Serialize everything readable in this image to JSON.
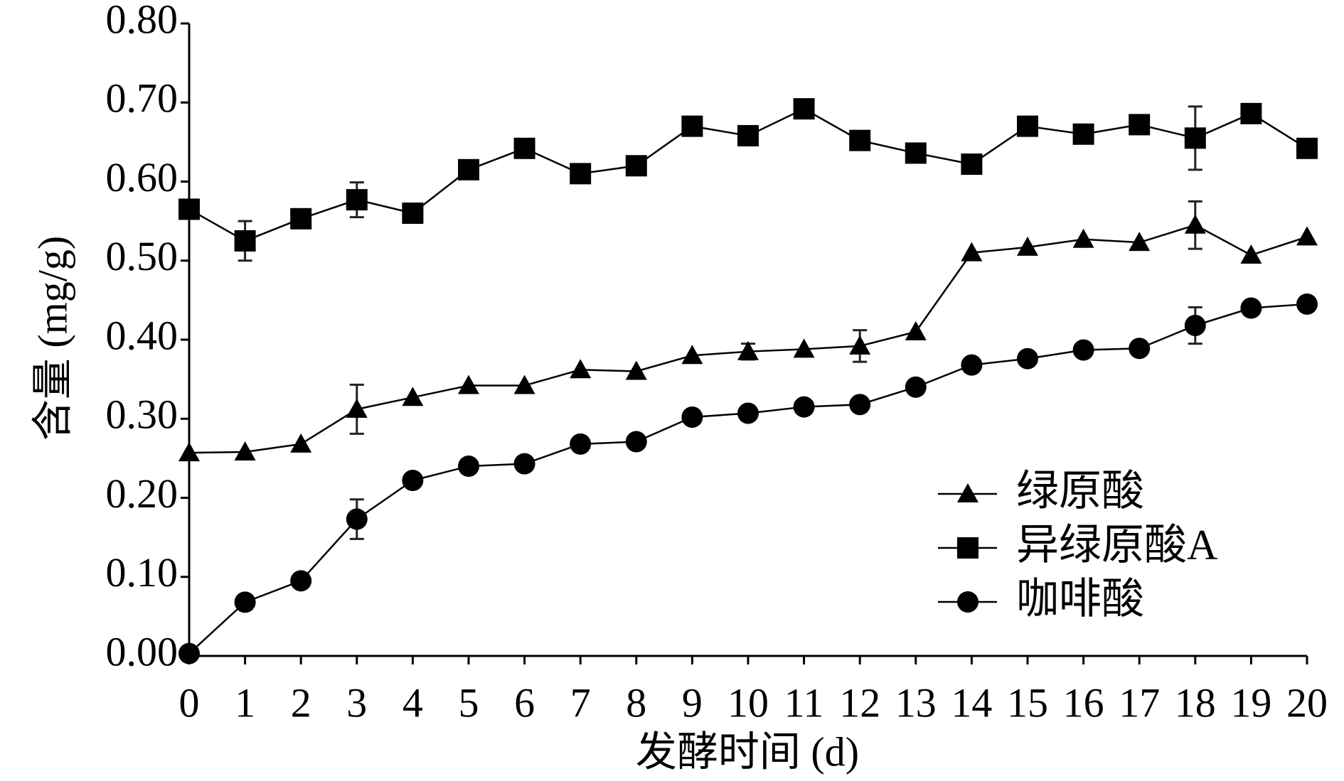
{
  "chart_data": {
    "type": "line",
    "x_label": "发酵时间 (d)",
    "y_label": "含量 (mg/g)",
    "x": [
      0,
      1,
      2,
      3,
      4,
      5,
      6,
      7,
      8,
      9,
      10,
      11,
      12,
      13,
      14,
      15,
      16,
      17,
      18,
      19,
      20
    ],
    "xlim": [
      0,
      20
    ],
    "xticks": [
      0,
      1,
      2,
      3,
      4,
      5,
      6,
      7,
      8,
      9,
      10,
      11,
      12,
      13,
      14,
      15,
      16,
      17,
      18,
      19,
      20
    ],
    "ylim": [
      0,
      0.8
    ],
    "yticks": [
      {
        "value": 0,
        "label": "0.00"
      },
      {
        "value": 0.1,
        "label": "0.10"
      },
      {
        "value": 0.2,
        "label": "0.20"
      },
      {
        "value": 0.3,
        "label": "0.30"
      },
      {
        "value": 0.4,
        "label": "0.40"
      },
      {
        "value": 0.5,
        "label": "0.50"
      },
      {
        "value": 0.6,
        "label": "0.60"
      },
      {
        "value": 0.7,
        "label": "0.70"
      },
      {
        "value": 0.8,
        "label": "0.80"
      }
    ],
    "grid": false,
    "legend": "lower right",
    "series": [
      {
        "name": "绿原酸",
        "color": "#000000",
        "marker": "triangle",
        "values": [
          0.257,
          0.258,
          0.268,
          0.312,
          0.327,
          0.342,
          0.342,
          0.362,
          0.36,
          0.38,
          0.385,
          0.388,
          0.392,
          0.41,
          0.51,
          0.517,
          0.527,
          0.523,
          0.545,
          0.507,
          0.53
        ],
        "errors": [
          null,
          null,
          null,
          0.031,
          null,
          null,
          null,
          null,
          null,
          null,
          0.01,
          null,
          0.02,
          null,
          null,
          null,
          null,
          null,
          0.03,
          null,
          null
        ]
      },
      {
        "name": "异绿原酸A",
        "color": "#000000",
        "marker": "square",
        "values": [
          0.565,
          0.525,
          0.553,
          0.577,
          0.56,
          0.615,
          0.642,
          0.61,
          0.62,
          0.67,
          0.658,
          0.692,
          0.652,
          0.636,
          0.622,
          0.67,
          0.66,
          0.672,
          0.655,
          0.686,
          0.642
        ],
        "errors": [
          null,
          0.025,
          0.01,
          0.022,
          null,
          null,
          null,
          null,
          null,
          null,
          null,
          null,
          null,
          null,
          null,
          null,
          null,
          null,
          0.04,
          null,
          null
        ]
      },
      {
        "name": "咖啡酸",
        "color": "#000000",
        "marker": "circle",
        "values": [
          0.003,
          0.068,
          0.095,
          0.173,
          0.222,
          0.24,
          0.243,
          0.268,
          0.271,
          0.302,
          0.307,
          0.315,
          0.318,
          0.34,
          0.368,
          0.376,
          0.387,
          0.389,
          0.418,
          0.44,
          0.445
        ],
        "errors": [
          null,
          null,
          null,
          0.025,
          null,
          null,
          null,
          null,
          null,
          null,
          null,
          null,
          null,
          null,
          null,
          null,
          null,
          null,
          0.023,
          null,
          null
        ]
      }
    ]
  }
}
